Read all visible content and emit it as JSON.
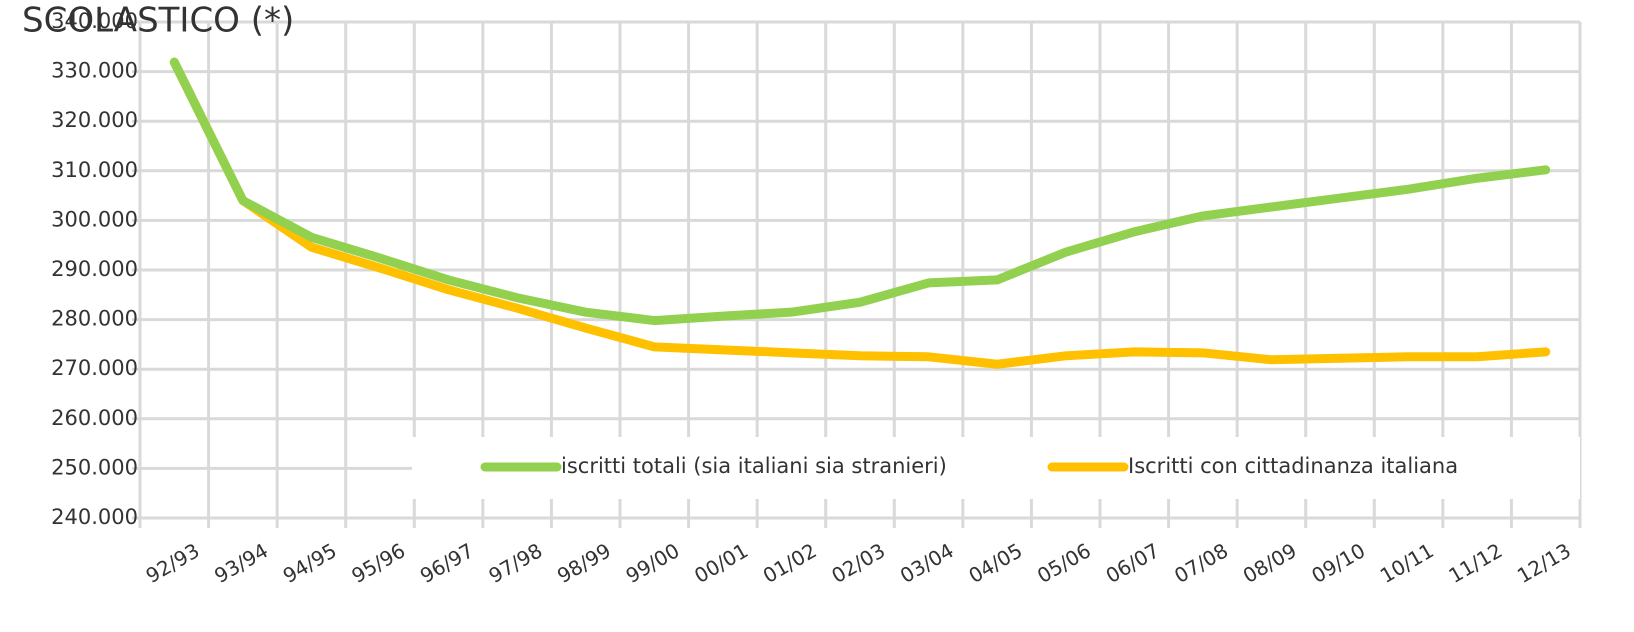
{
  "chart_data": {
    "type": "line",
    "title": "SCOLASTICO (*)",
    "categories": [
      "92/93",
      "93/94",
      "94/95",
      "95/96",
      "96/97",
      "97/98",
      "98/99",
      "99/00",
      "00/01",
      "01/02",
      "02/03",
      "03/04",
      "04/05",
      "05/06",
      "06/07",
      "07/08",
      "08/09",
      "09/10",
      "10/11",
      "11/12",
      "12/13"
    ],
    "series": [
      {
        "name": "iscritti totali (sia italiani sia stranieri)",
        "color": "#92d050",
        "values": [
          331900,
          304000,
          296600,
          292400,
          288000,
          284400,
          281500,
          279800,
          280700,
          281500,
          283500,
          287400,
          288000,
          293600,
          297700,
          300900,
          302700,
          304500,
          306300,
          308500,
          310200
        ]
      },
      {
        "name": "Iscritti con cittadinanza italiana",
        "color": "#ffc000",
        "values": [
          331900,
          304000,
          294600,
          290400,
          286000,
          282300,
          278300,
          274500,
          273900,
          273300,
          272700,
          272500,
          271000,
          272700,
          273500,
          273300,
          271900,
          272200,
          272500,
          272500,
          273500
        ]
      }
    ],
    "ylim": [
      240000,
      340000
    ],
    "yticks": [
      {
        "value": 240000,
        "label": "240.000"
      },
      {
        "value": 250000,
        "label": "250.000"
      },
      {
        "value": 260000,
        "label": "260.000"
      },
      {
        "value": 270000,
        "label": "270.000"
      },
      {
        "value": 280000,
        "label": "280.000"
      },
      {
        "value": 290000,
        "label": "290.000"
      },
      {
        "value": 300000,
        "label": "300.000"
      },
      {
        "value": 310000,
        "label": "310.000"
      },
      {
        "value": 320000,
        "label": "320.000"
      },
      {
        "value": 330000,
        "label": "330.000"
      },
      {
        "value": 340000,
        "label": "340.000"
      }
    ],
    "grid": true
  }
}
